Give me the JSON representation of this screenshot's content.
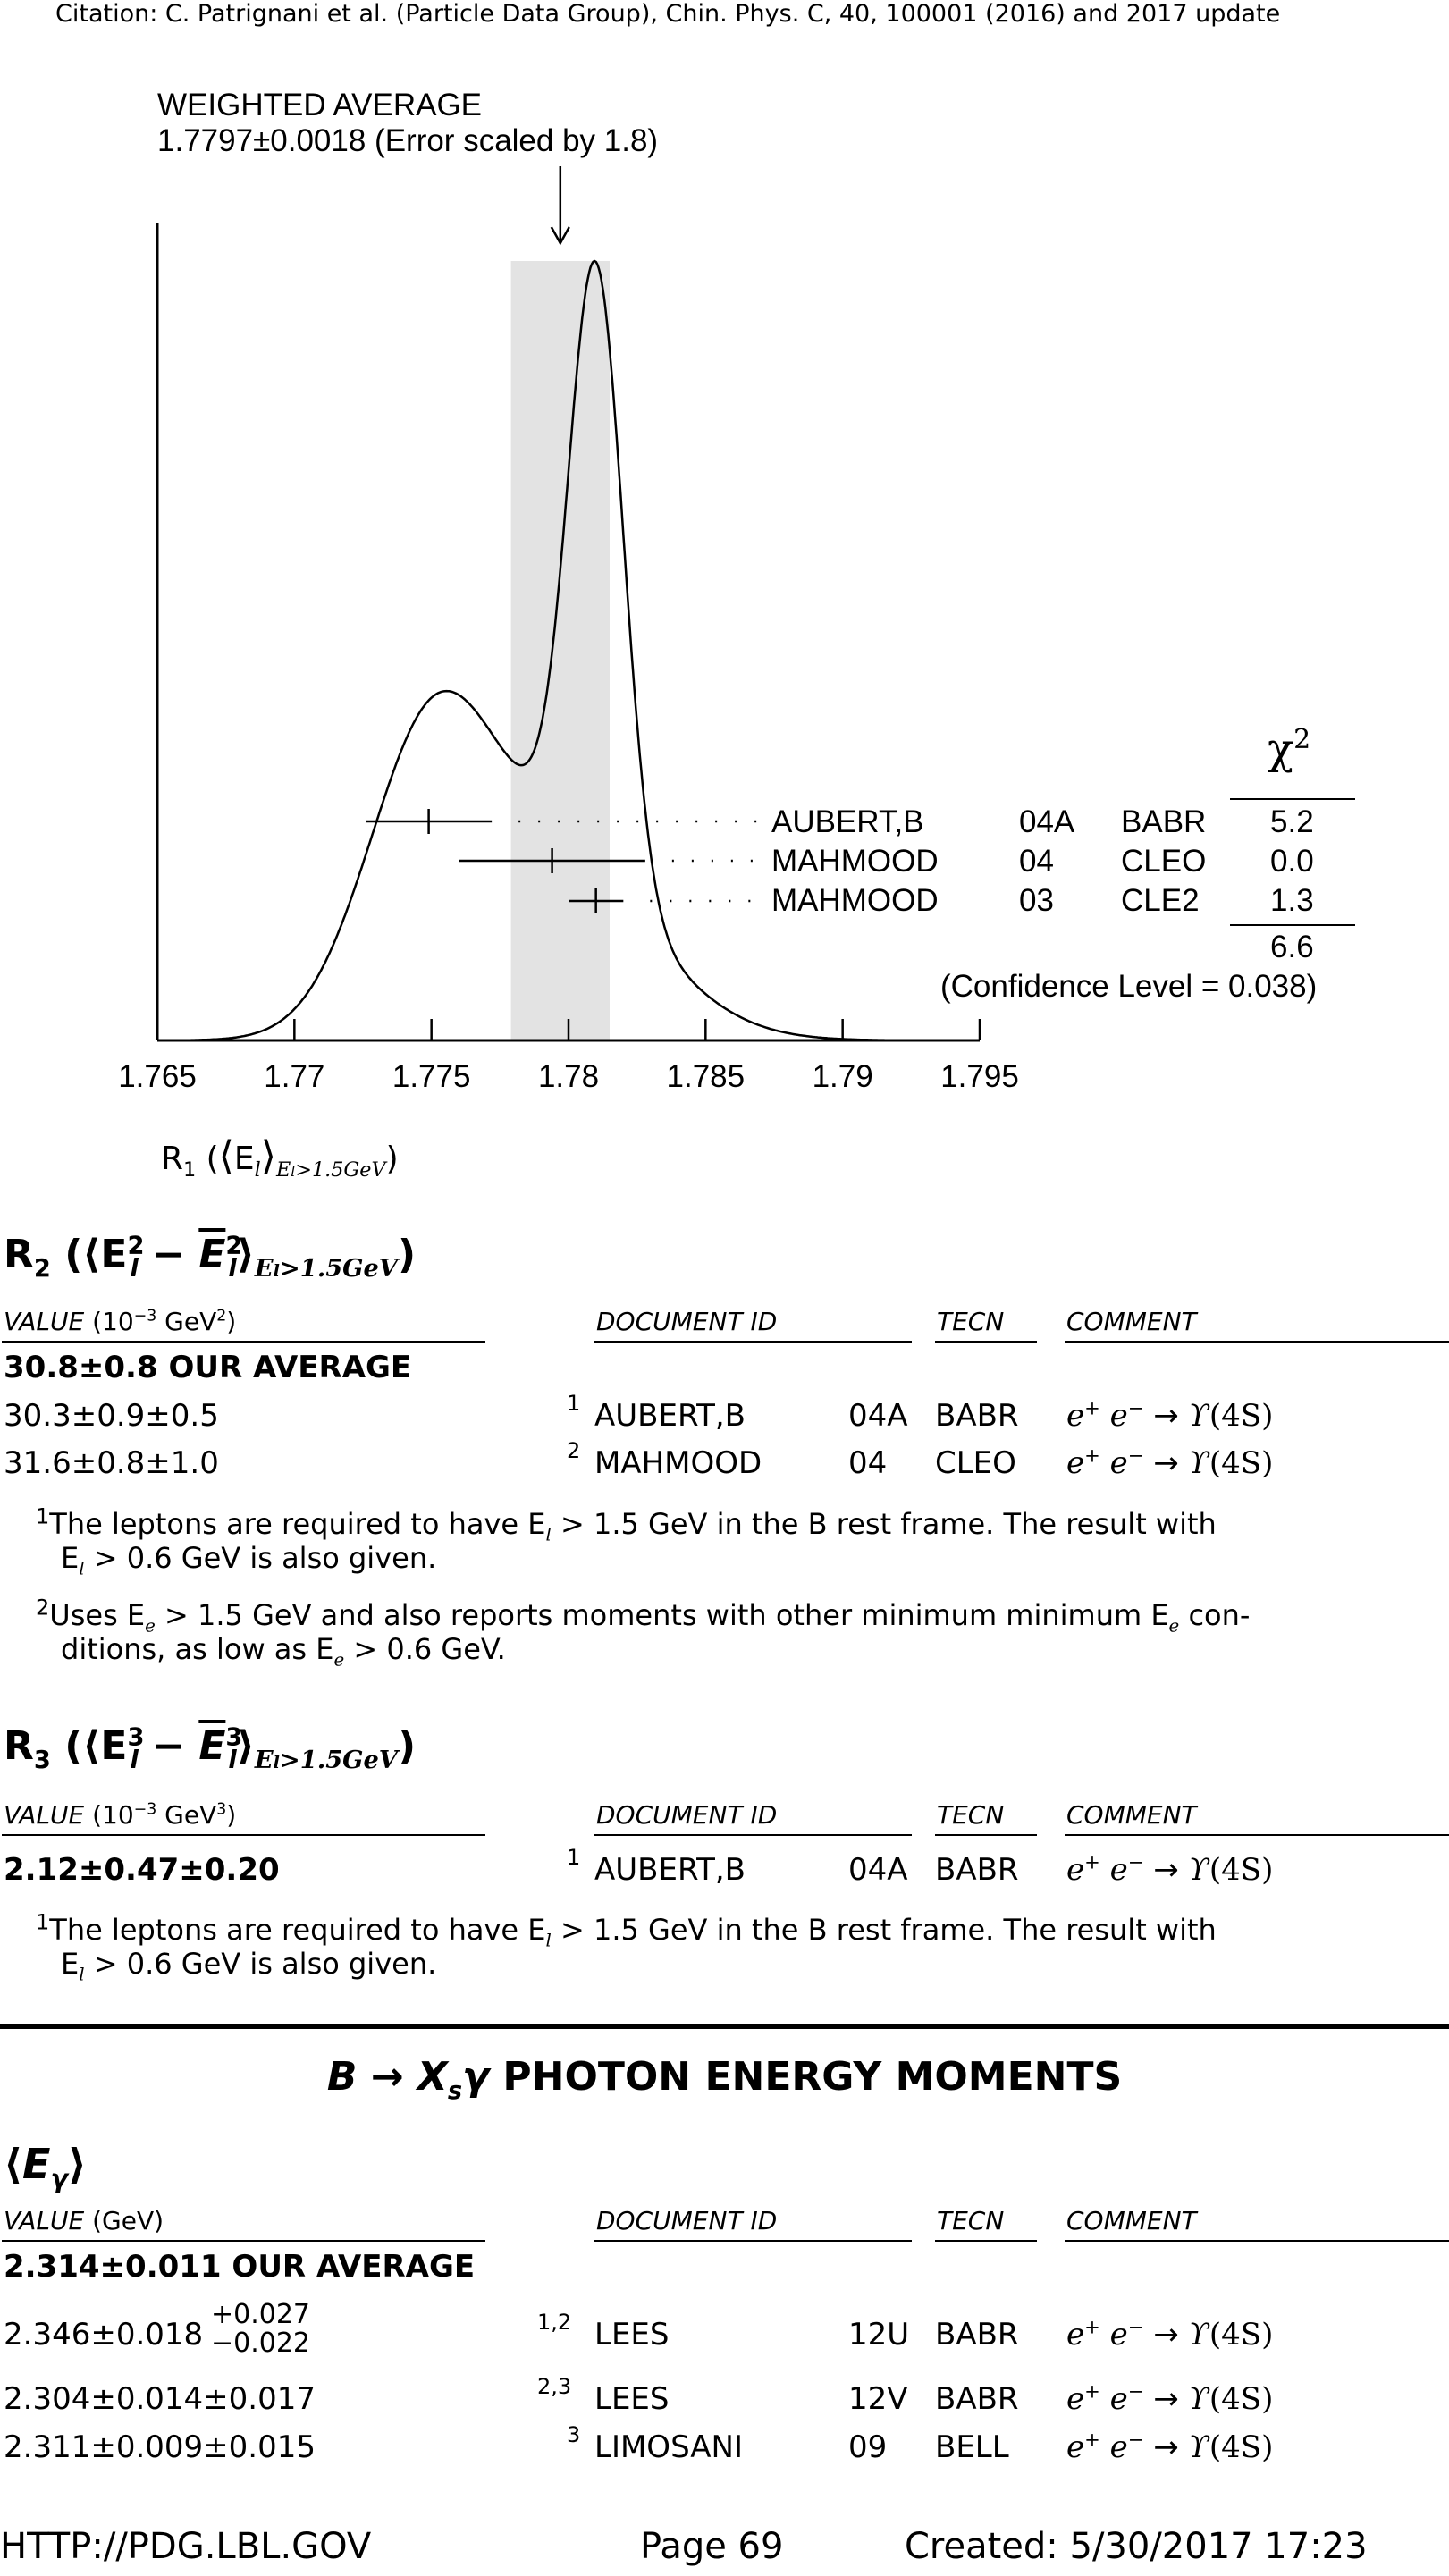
{
  "citation": "Citation: C. Patrignani et al. (Particle Data Group), Chin. Phys. C, 40, 100001 (2016) and 2017 update",
  "ideogram": {
    "title_line1": "WEIGHTED AVERAGE",
    "title_line2": "1.7797±0.0018 (Error scaled by 1.8)",
    "chi2_header": "χ",
    "chi2_total": "6.6",
    "confidence": "(Confidence Level = 0.038)",
    "x_axis_label": "R₁ (⟨E_l⟩_{E_l>1.5GeV})",
    "x_axis_label_main": "R",
    "x_axis_label_sub": "1",
    "x_axis_label_paren_open": "(",
    "x_axis_label_E": "E",
    "x_axis_label_l": "l",
    "x_axis_label_cond": "E",
    "x_axis_label_cond_sub": "l",
    "x_axis_label_cond_rest": ">1.5GeV",
    "x_axis_label_paren_close": ")",
    "rows": [
      {
        "author": "AUBERT,B",
        "year": "04A",
        "tecn": "BABR",
        "chi2": "5.2"
      },
      {
        "author": "MAHMOOD",
        "year": "04",
        "tecn": "CLEO",
        "chi2": "0.0"
      },
      {
        "author": "MAHMOOD",
        "year": "03",
        "tecn": "CLE2",
        "chi2": "1.3"
      }
    ]
  },
  "chart_data": {
    "type": "ideogram",
    "title": "WEIGHTED AVERAGE 1.7797±0.0018 (Error scaled by 1.8)",
    "xlim": [
      1.765,
      1.795
    ],
    "x_ticks": [
      "1.765",
      "1.77",
      "1.775",
      "1.78",
      "1.785",
      "1.79",
      "1.795"
    ],
    "average": 1.7797,
    "average_error": 0.0018,
    "error_scale": 1.8,
    "band": [
      1.7779,
      1.7815
    ],
    "measurements": [
      {
        "label": "AUBERT,B 04A BABR",
        "value": 1.7749,
        "error": 0.0023,
        "chi2": 5.2
      },
      {
        "label": "MAHMOOD 04 CLEO",
        "value": 1.7794,
        "error": 0.0034,
        "chi2": 0.0
      },
      {
        "label": "MAHMOOD 03 CLE2",
        "value": 1.781,
        "error": 0.001,
        "chi2": 1.3
      }
    ],
    "chi2_total": 6.6,
    "confidence_level": 0.038
  },
  "r2": {
    "title_R": "R",
    "title_sub": "2",
    "header": {
      "value": "VALUE",
      "unit": "(10",
      "unit_exp": "−3",
      "unit_rest": "GeV",
      "unit_rest_exp": "2",
      "unit_close": ")",
      "doc": "DOCUMENT ID",
      "tecn": "TECN",
      "comment": "COMMENT"
    },
    "average": "30.8±0.8 OUR AVERAGE",
    "rows": [
      {
        "value": "30.3±0.9±0.5",
        "fn": "1",
        "author": "AUBERT,B",
        "year": "04A",
        "tecn": "BABR"
      },
      {
        "value": "31.6±0.8±1.0",
        "fn": "2",
        "author": "MAHMOOD",
        "year": "04",
        "tecn": "CLEO"
      }
    ],
    "footnotes": [
      {
        "num": "1",
        "text": "The leptons are required to have E",
        "sub": "l",
        "text2": " > 1.5 GeV in the B rest frame. The result with",
        "line2_a": "E",
        "line2_sub": "l",
        "line2_b": " > 0.6 GeV is also given."
      },
      {
        "num": "2",
        "text": "Uses E",
        "sub": "e",
        "text2": " > 1.5 GeV and also reports moments with other minimum minimum E",
        "sub2": "e",
        "text3": " con-",
        "line2_a": "ditions, as low as E",
        "line2_sub": "e",
        "line2_b": " > 0.6 GeV."
      }
    ]
  },
  "r3": {
    "title_R": "R",
    "title_sub": "3",
    "header": {
      "value": "VALUE",
      "unit": "(10",
      "unit_exp": "−3",
      "unit_rest": "GeV",
      "unit_rest_exp": "3",
      "unit_close": ")",
      "doc": "DOCUMENT ID",
      "tecn": "TECN",
      "comment": "COMMENT"
    },
    "rows": [
      {
        "value": "2.12±0.47±0.20",
        "fn": "1",
        "author": "AUBERT,B",
        "year": "04A",
        "tecn": "BABR"
      }
    ],
    "footnotes": [
      {
        "num": "1",
        "text": "The leptons are required to have E",
        "sub": "l",
        "text2": " > 1.5 GeV in the B rest frame. The result with",
        "line2_a": "E",
        "line2_sub": "l",
        "line2_b": " > 0.6 GeV is also given."
      }
    ]
  },
  "photon": {
    "section_title_B": "B",
    "section_title_arrow": "→",
    "section_title_X": "X",
    "section_title_s": "s",
    "section_title_gamma": "γ",
    "section_title_rest": "PHOTON ENERGY MOMENTS",
    "sub_title_E": "E",
    "sub_title_gamma": "γ",
    "header": {
      "value": "VALUE",
      "unit": "(GeV)",
      "doc": "DOCUMENT ID",
      "tecn": "TECN",
      "comment": "COMMENT"
    },
    "average": "2.314±0.011 OUR AVERAGE",
    "rows": [
      {
        "value": "2.346±0.018",
        "up": "+0.027",
        "down": "−0.022",
        "fn": "1,2",
        "author": "LEES",
        "year": "12U",
        "tecn": "BABR"
      },
      {
        "value": "2.304±0.014±0.017",
        "fn": "2,3",
        "author": "LEES",
        "year": "12V",
        "tecn": "BABR"
      },
      {
        "value": "2.311±0.009±0.015",
        "fn": "3",
        "author": "LIMOSANI",
        "year": "09",
        "tecn": "BELL"
      }
    ]
  },
  "reaction": {
    "e": "e",
    "plus": "+",
    "minus": "−",
    "arrow": "→",
    "upsilon": "ϒ",
    "state": "(4S)"
  },
  "footer": {
    "url": "HTTP://PDG.LBL.GOV",
    "page": "Page 69",
    "created": "Created: 5/30/2017 17:23"
  }
}
